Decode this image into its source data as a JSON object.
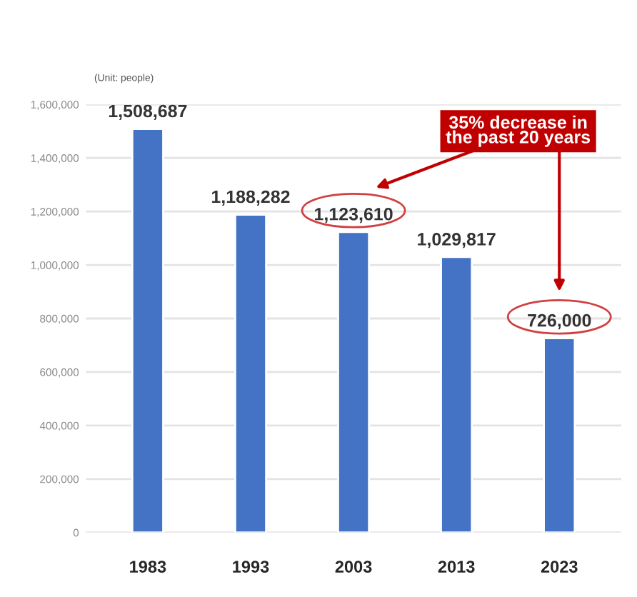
{
  "chart_data": {
    "type": "bar",
    "categories": [
      "1983",
      "1993",
      "2003",
      "2013",
      "2023"
    ],
    "values": [
      1508687,
      1188282,
      1123610,
      1029817,
      726000
    ],
    "color": "#4472c4",
    "ylim": [
      0,
      1600000
    ],
    "yticks": [
      0,
      {
        "value": 200000,
        "label": "200,000"
      },
      {
        "value": 400000,
        "label": "400,000"
      },
      {
        "value": 600000,
        "label": "600,000"
      },
      {
        "value": 800000,
        "label": "800,000"
      },
      {
        "value": 1000000,
        "label": "1,000,000"
      },
      {
        "value": 1200000,
        "label": "1,200,000"
      },
      {
        "value": 1400000,
        "label": "1,400,000"
      },
      {
        "value": 1600000,
        "label": "1,600,000"
      }
    ],
    "grid": "y",
    "value_labels": [
      "1,508,687",
      "1,188,282",
      "1,123,610",
      "1,029,817",
      "726,000"
    ],
    "annotations": [
      "(Unit: people)",
      "35% decrease in\nthe past 20 years"
    ]
  }
}
